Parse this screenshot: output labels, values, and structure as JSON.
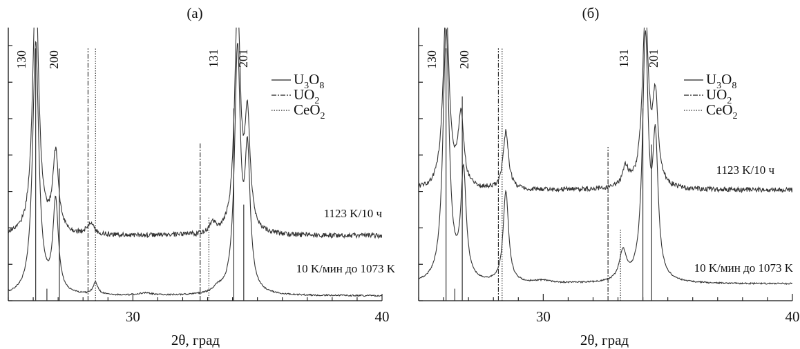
{
  "chart_data": [
    {
      "panel_label": "(а)",
      "type": "line",
      "xlabel": "2θ, град",
      "xlim": [
        25,
        40
      ],
      "x_ticks": [
        30,
        40
      ],
      "y_ticks_count": 8,
      "legend": [
        {
          "name": "U₃O₈",
          "base": "U",
          "sub1": "3",
          "mid": "O",
          "sub2": "8",
          "style": "solid"
        },
        {
          "name": "UO₂",
          "base": "UO",
          "sub1": "2",
          "style": "dashdot"
        },
        {
          "name": "CeO₂",
          "base": "CeO",
          "sub1": "2",
          "style": "dotted"
        }
      ],
      "peak_labels": [
        {
          "text": "130",
          "x": 25.7
        },
        {
          "text": "200",
          "x": 27.0
        },
        {
          "text": "131",
          "x": 33.4
        },
        {
          "text": "201",
          "x": 34.6
        }
      ],
      "series": [
        {
          "name": "1123 K/10 ч",
          "label": "1123 K/10 ч",
          "baseline": 0.27,
          "noise": 0.01,
          "peaks": [
            [
              26.1,
              1.05,
              0.15
            ],
            [
              26.9,
              0.33,
              0.14
            ],
            [
              28.3,
              0.05,
              0.15
            ],
            [
              33.2,
              0.04,
              0.15
            ],
            [
              34.2,
              0.95,
              0.14
            ],
            [
              34.6,
              0.45,
              0.13
            ]
          ]
        },
        {
          "name": "10 K/мин до 1073 K",
          "label": "10 K/мин до 1073 K",
          "baseline": 0.02,
          "noise": 0.003,
          "peaks": [
            [
              26.1,
              1.05,
              0.15
            ],
            [
              26.9,
              0.38,
              0.13
            ],
            [
              28.5,
              0.05,
              0.12
            ],
            [
              30.5,
              0.01,
              0.3
            ],
            [
              33.4,
              0.02,
              0.2
            ],
            [
              34.2,
              1.0,
              0.14
            ],
            [
              34.6,
              0.55,
              0.13
            ]
          ]
        }
      ],
      "ref_lines": [
        {
          "phase": "U3O8",
          "x": 26.1,
          "height": 1.05,
          "style": "solid"
        },
        {
          "phase": "U3O8",
          "x": 27.05,
          "height": 0.55,
          "style": "solid"
        },
        {
          "phase": "U3O8",
          "x": 34.05,
          "height": 0.8,
          "style": "solid"
        },
        {
          "phase": "U3O8",
          "x": 34.45,
          "height": 0.4,
          "style": "solid"
        },
        {
          "phase": "U3O8",
          "x": 26.55,
          "height": 0.05,
          "style": "solid"
        },
        {
          "phase": "UO2",
          "x": 28.2,
          "height": 1.05,
          "style": "dashdot"
        },
        {
          "phase": "UO2",
          "x": 32.7,
          "height": 0.66,
          "style": "dashdot"
        },
        {
          "phase": "CeO2",
          "x": 28.5,
          "height": 1.05,
          "style": "dotted"
        },
        {
          "phase": "CeO2",
          "x": 33.05,
          "height": 0.35,
          "style": "dotted"
        }
      ]
    },
    {
      "panel_label": "(б)",
      "type": "line",
      "xlabel": "2θ, град",
      "xlim": [
        25,
        40
      ],
      "x_ticks": [
        30,
        40
      ],
      "y_ticks_count": 8,
      "legend": [
        {
          "name": "U₃O₈",
          "base": "U",
          "sub1": "3",
          "mid": "O",
          "sub2": "8",
          "style": "solid"
        },
        {
          "name": "UO₂",
          "base": "UO",
          "sub1": "2",
          "style": "dashdot"
        },
        {
          "name": "CeO₂",
          "base": "CeO",
          "sub1": "2",
          "style": "dotted"
        }
      ],
      "peak_labels": [
        {
          "text": "130",
          "x": 25.7
        },
        {
          "text": "200",
          "x": 27.0
        },
        {
          "text": "131",
          "x": 33.4
        },
        {
          "text": "201",
          "x": 34.6
        }
      ],
      "series": [
        {
          "name": "1123 K/10 ч",
          "label": "1123 K/10 ч",
          "baseline": 0.46,
          "noise": 0.01,
          "peaks": [
            [
              26.1,
              0.75,
              0.15
            ],
            [
              26.7,
              0.3,
              0.13
            ],
            [
              28.5,
              0.24,
              0.13
            ],
            [
              33.3,
              0.08,
              0.15
            ],
            [
              34.1,
              0.72,
              0.15
            ],
            [
              34.5,
              0.35,
              0.13
            ]
          ]
        },
        {
          "name": "10 K/мин до 1073 K",
          "label": "10 K/мин до 1073 K",
          "baseline": 0.07,
          "noise": 0.003,
          "peaks": [
            [
              26.1,
              1.05,
              0.15
            ],
            [
              26.8,
              0.45,
              0.13
            ],
            [
              28.5,
              0.38,
              0.13
            ],
            [
              30.0,
              0.01,
              0.4
            ],
            [
              33.2,
              0.12,
              0.17
            ],
            [
              34.1,
              1.0,
              0.14
            ],
            [
              34.5,
              0.55,
              0.13
            ]
          ]
        }
      ],
      "ref_lines": [
        {
          "phase": "U3O8",
          "x": 26.1,
          "height": 1.05,
          "style": "solid"
        },
        {
          "phase": "U3O8",
          "x": 26.75,
          "height": 0.85,
          "style": "solid"
        },
        {
          "phase": "U3O8",
          "x": 34.0,
          "height": 0.8,
          "style": "solid"
        },
        {
          "phase": "U3O8",
          "x": 34.35,
          "height": 0.65,
          "style": "solid"
        },
        {
          "phase": "U3O8",
          "x": 26.45,
          "height": 0.05,
          "style": "solid"
        },
        {
          "phase": "UO2",
          "x": 28.2,
          "height": 1.05,
          "style": "dashdot"
        },
        {
          "phase": "UO2",
          "x": 32.6,
          "height": 0.64,
          "style": "dashdot"
        },
        {
          "phase": "CeO2",
          "x": 28.35,
          "height": 1.05,
          "style": "dotted"
        },
        {
          "phase": "CeO2",
          "x": 33.1,
          "height": 0.3,
          "style": "dotted"
        }
      ]
    }
  ]
}
